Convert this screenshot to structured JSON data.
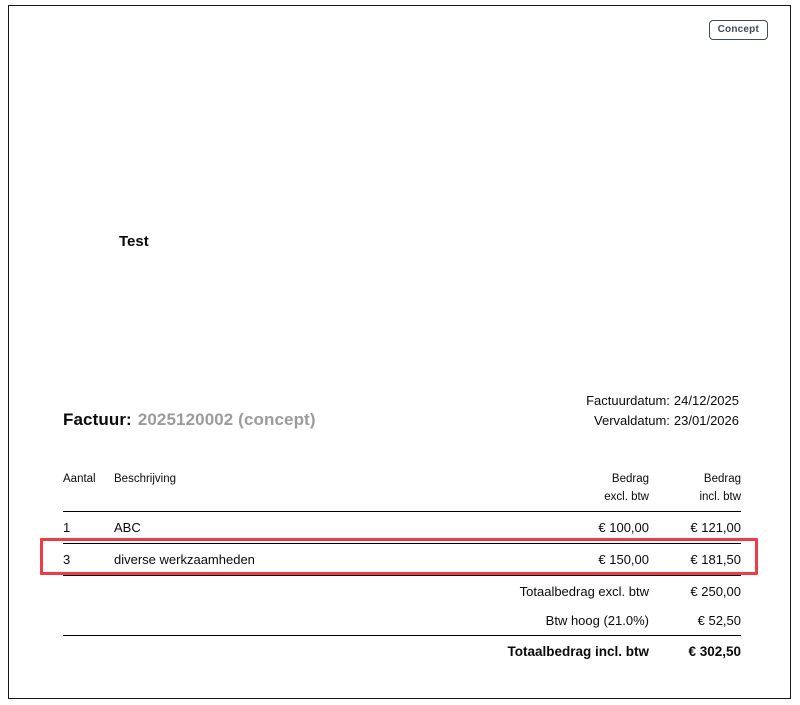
{
  "badge": {
    "label": "Concept"
  },
  "company": {
    "name": "Test"
  },
  "invoice": {
    "title_label": "Factuur:",
    "number": "2025120002 (concept)",
    "date_label": "Factuurdatum:",
    "date_value": "24/12/2025",
    "due_label": "Vervaldatum:",
    "due_value": "23/01/2026"
  },
  "table": {
    "headers": {
      "qty": "Aantal",
      "desc": "Beschrijving",
      "excl_line1": "Bedrag",
      "excl_line2": "excl. btw",
      "incl_line1": "Bedrag",
      "incl_line2": "incl. btw"
    },
    "rows": [
      {
        "qty": "1",
        "desc": "ABC",
        "excl": "€ 100,00",
        "incl": "€ 121,00"
      },
      {
        "qty": "3",
        "desc": "diverse werkzaamheden",
        "excl": "€ 150,00",
        "incl": "€ 181,50"
      }
    ],
    "totals": [
      {
        "label": "Totaalbedrag excl. btw",
        "value": "€ 250,00"
      },
      {
        "label": "Btw hoog (21.0%)",
        "value": "€ 52,50"
      },
      {
        "label": "Totaalbedrag incl. btw",
        "value": "€ 302,50"
      }
    ]
  },
  "colors": {
    "highlight_border": "#ef3b46",
    "badge_color": "#3d4b5c",
    "muted_text": "#9b9b9b"
  }
}
